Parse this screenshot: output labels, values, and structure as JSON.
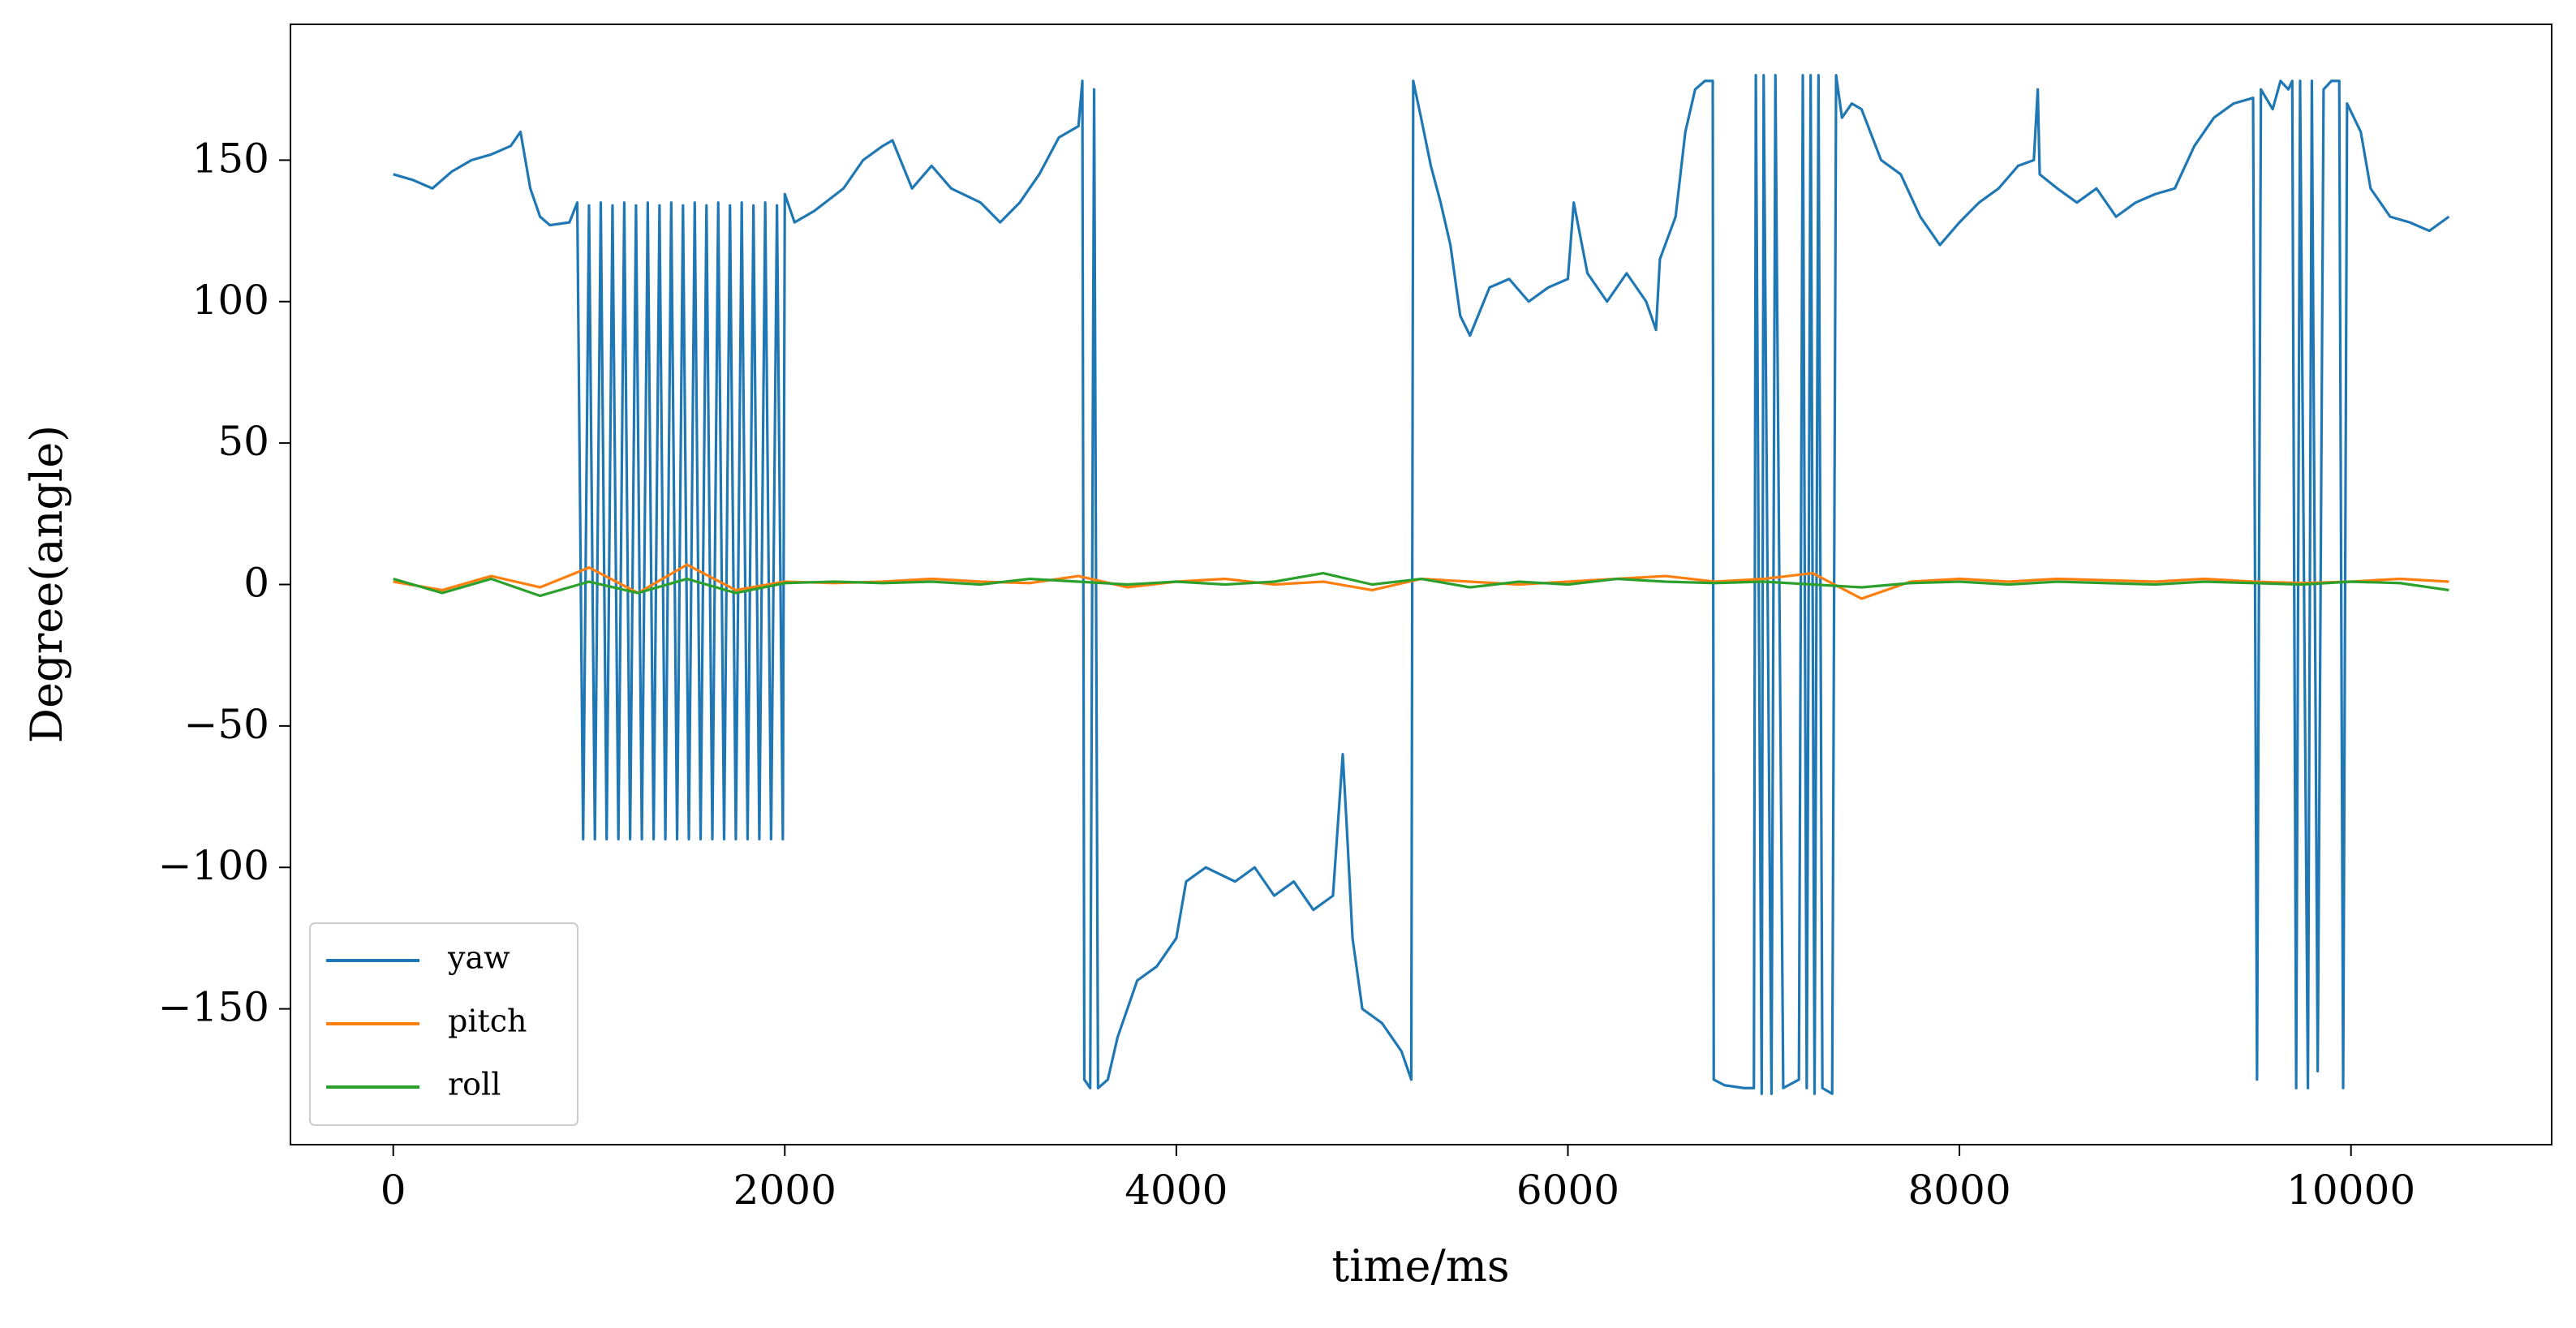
{
  "chart_data": {
    "type": "line",
    "xlabel": "time/ms",
    "ylabel": "Degree(angle)",
    "xlim": [
      -525,
      11025
    ],
    "ylim": [
      -198,
      198
    ],
    "xticks": [
      0,
      2000,
      4000,
      6000,
      8000,
      10000
    ],
    "yticks": [
      {
        "value": -150,
        "label": "−150"
      },
      {
        "value": -100,
        "label": "−100"
      },
      {
        "value": -50,
        "label": "−50"
      },
      0,
      50,
      100,
      150
    ],
    "legend": "lower left",
    "series": [
      {
        "name": "yaw",
        "color": "#1f77b4",
        "x": [
          0,
          100,
          200,
          300,
          400,
          500,
          600,
          650,
          700,
          750,
          800,
          900,
          940,
          970,
          1000,
          1030,
          1060,
          1090,
          1120,
          1150,
          1180,
          1210,
          1240,
          1270,
          1300,
          1330,
          1360,
          1390,
          1420,
          1450,
          1480,
          1510,
          1540,
          1570,
          1600,
          1630,
          1660,
          1690,
          1720,
          1750,
          1780,
          1810,
          1840,
          1870,
          1900,
          1930,
          1960,
          1990,
          2000,
          2050,
          2150,
          2300,
          2400,
          2500,
          2550,
          2650,
          2750,
          2850,
          3000,
          3100,
          3200,
          3300,
          3400,
          3500,
          3520,
          3530,
          3560,
          3580,
          3600,
          3650,
          3700,
          3800,
          3900,
          4000,
          4050,
          4150,
          4300,
          4400,
          4500,
          4600,
          4700,
          4800,
          4850,
          4870,
          4900,
          4950,
          5050,
          5150,
          5200,
          5210,
          5250,
          5300,
          5350,
          5400,
          5450,
          5500,
          5600,
          5700,
          5800,
          5900,
          6000,
          6030,
          6100,
          6200,
          6300,
          6400,
          6450,
          6470,
          6550,
          6600,
          6650,
          6700,
          6740,
          6745,
          6800,
          6900,
          6950,
          6960,
          6990,
          7000,
          7040,
          7060,
          7100,
          7180,
          7200,
          7220,
          7240,
          7260,
          7280,
          7300,
          7350,
          7370,
          7400,
          7450,
          7500,
          7600,
          7700,
          7800,
          7900,
          8000,
          8100,
          8200,
          8300,
          8380,
          8400,
          8410,
          8500,
          8600,
          8700,
          8800,
          8900,
          9000,
          9100,
          9200,
          9300,
          9400,
          9500,
          9520,
          9540,
          9600,
          9640,
          9680,
          9700,
          9720,
          9740,
          9780,
          9800,
          9830,
          9860,
          9900,
          9940,
          9960,
          9980,
          10050,
          10100,
          10200,
          10300,
          10400,
          10500
        ],
        "values": [
          145,
          143,
          140,
          146,
          150,
          152,
          155,
          160,
          140,
          130,
          127,
          128,
          135,
          -90,
          134,
          -90,
          135,
          -90,
          134,
          -90,
          135,
          -90,
          134,
          -90,
          135,
          -90,
          134,
          -90,
          135,
          -90,
          134,
          -90,
          135,
          -90,
          134,
          -90,
          135,
          -90,
          134,
          -90,
          135,
          -90,
          134,
          -90,
          135,
          -90,
          134,
          -90,
          138,
          128,
          132,
          140,
          150,
          155,
          157,
          140,
          148,
          140,
          135,
          128,
          135,
          145,
          158,
          162,
          178,
          -175,
          -178,
          175,
          -178,
          -175,
          -160,
          -140,
          -135,
          -125,
          -105,
          -100,
          -105,
          -100,
          -110,
          -105,
          -115,
          -110,
          -60,
          -85,
          -125,
          -150,
          -155,
          -165,
          -175,
          178,
          165,
          148,
          135,
          120,
          95,
          88,
          105,
          108,
          100,
          105,
          108,
          135,
          110,
          100,
          110,
          100,
          90,
          115,
          130,
          160,
          175,
          178,
          178,
          -175,
          -177,
          -178,
          -178,
          180,
          -180,
          180,
          -180,
          180,
          -178,
          -175,
          180,
          -178,
          180,
          -180,
          180,
          -178,
          -180,
          180,
          165,
          170,
          168,
          150,
          145,
          130,
          120,
          128,
          135,
          140,
          148,
          150,
          175,
          145,
          140,
          135,
          140,
          130,
          135,
          138,
          140,
          155,
          165,
          170,
          172,
          -175,
          175,
          168,
          178,
          175,
          178,
          -178,
          178,
          -178,
          178,
          -172,
          175,
          178,
          178,
          -178,
          170,
          160,
          140,
          130,
          128,
          125,
          130
        ]
      },
      {
        "name": "pitch",
        "color": "#ff7f0e",
        "x": [
          0,
          250,
          500,
          750,
          1000,
          1250,
          1500,
          1750,
          2000,
          2250,
          2500,
          2750,
          3000,
          3250,
          3500,
          3750,
          4000,
          4250,
          4500,
          4750,
          5000,
          5250,
          5500,
          5750,
          6000,
          6250,
          6500,
          6750,
          7000,
          7250,
          7500,
          7750,
          8000,
          8250,
          8500,
          8750,
          9000,
          9250,
          9500,
          9750,
          10000,
          10250,
          10500
        ],
        "values": [
          1,
          -2,
          3,
          -1,
          6,
          -3,
          7,
          -2,
          1,
          0.5,
          1,
          2,
          1,
          0.5,
          3,
          -1,
          1,
          2,
          0,
          1,
          -2,
          2,
          1,
          0,
          1,
          2,
          3,
          1,
          2,
          4,
          -5,
          1,
          2,
          1,
          2,
          1.5,
          1,
          2,
          1,
          0.5,
          1,
          2,
          1
        ]
      },
      {
        "name": "roll",
        "color": "#2ca02c",
        "x": [
          0,
          250,
          500,
          750,
          1000,
          1250,
          1500,
          1750,
          2000,
          2250,
          2500,
          2750,
          3000,
          3250,
          3500,
          3750,
          4000,
          4250,
          4500,
          4750,
          5000,
          5250,
          5500,
          5750,
          6000,
          6250,
          6500,
          6750,
          7000,
          7250,
          7500,
          7750,
          8000,
          8250,
          8500,
          8750,
          9000,
          9250,
          9500,
          9750,
          10000,
          10250,
          10500
        ],
        "values": [
          2,
          -3,
          2,
          -4,
          1,
          -3,
          2,
          -3,
          0.5,
          1,
          0.5,
          1,
          0,
          2,
          1,
          0,
          1,
          0,
          1,
          4,
          0,
          2,
          -1,
          1,
          0,
          2,
          1,
          0.5,
          1,
          0,
          -1,
          0.5,
          1,
          0,
          1,
          0.5,
          0,
          1,
          0.5,
          0,
          1,
          0.5,
          -2
        ]
      }
    ]
  }
}
